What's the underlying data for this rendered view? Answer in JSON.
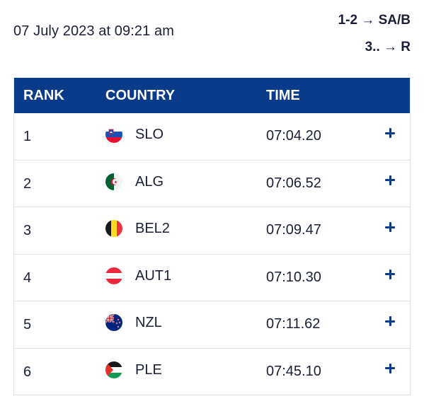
{
  "timestamp": "07 July 2023 at 09:21 am",
  "progression": {
    "line1": "1-2 → SA/B",
    "line2": "3.. → R"
  },
  "table": {
    "headers": {
      "rank": "RANK",
      "country": "COUNTRY",
      "time": "TIME"
    },
    "rows": [
      {
        "rank": "1",
        "country": "SLO",
        "time": "07:04.20",
        "flag": "slovenia-flag-icon"
      },
      {
        "rank": "2",
        "country": "ALG",
        "time": "07:06.52",
        "flag": "algeria-flag-icon"
      },
      {
        "rank": "3",
        "country": "BEL2",
        "time": "07:09.47",
        "flag": "belgium-flag-icon"
      },
      {
        "rank": "4",
        "country": "AUT1",
        "time": "07:10.30",
        "flag": "austria-flag-icon"
      },
      {
        "rank": "5",
        "country": "NZL",
        "time": "07:11.62",
        "flag": "new-zealand-flag-icon"
      },
      {
        "rank": "6",
        "country": "PLE",
        "time": "07:45.10",
        "flag": "palestine-flag-icon"
      }
    ],
    "expand_icon": "plus-icon"
  },
  "colors": {
    "header_bg": "#0a3a8a",
    "text": "#1a1f36",
    "divider": "#e1e4ea"
  }
}
